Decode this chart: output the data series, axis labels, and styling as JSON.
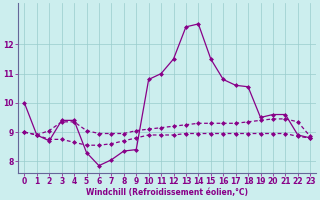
{
  "title": "",
  "xlabel": "Windchill (Refroidissement éolien,°C)",
  "background_color": "#cceeee",
  "grid_color": "#99cccc",
  "line_color": "#880088",
  "x": [
    0,
    1,
    2,
    3,
    4,
    5,
    6,
    7,
    8,
    9,
    10,
    11,
    12,
    13,
    14,
    15,
    16,
    17,
    18,
    19,
    20,
    21,
    22,
    23
  ],
  "line1": [
    10.0,
    8.9,
    8.7,
    9.4,
    9.4,
    8.3,
    7.85,
    8.05,
    8.35,
    8.4,
    10.8,
    11.0,
    11.5,
    12.6,
    12.7,
    11.5,
    10.8,
    10.6,
    10.55,
    9.5,
    9.6,
    9.6,
    8.9,
    8.8
  ],
  "line2": [
    9.0,
    8.9,
    9.05,
    9.35,
    9.35,
    9.05,
    8.95,
    8.95,
    8.95,
    9.05,
    9.1,
    9.15,
    9.2,
    9.25,
    9.3,
    9.3,
    9.3,
    9.3,
    9.35,
    9.4,
    9.45,
    9.45,
    9.35,
    8.85
  ],
  "line3": [
    9.0,
    8.9,
    8.75,
    8.75,
    8.65,
    8.55,
    8.55,
    8.6,
    8.7,
    8.8,
    8.9,
    8.9,
    8.9,
    8.95,
    8.95,
    8.95,
    8.95,
    8.95,
    8.95,
    8.95,
    8.95,
    8.95,
    8.85,
    8.8
  ],
  "ylim": [
    7.6,
    13.4
  ],
  "xlim": [
    -0.5,
    23.5
  ],
  "yticks": [
    8,
    9,
    10,
    11,
    12
  ],
  "xticks": [
    0,
    1,
    2,
    3,
    4,
    5,
    6,
    7,
    8,
    9,
    10,
    11,
    12,
    13,
    14,
    15,
    16,
    17,
    18,
    19,
    20,
    21,
    22,
    23
  ],
  "spine_color": "#666699",
  "tick_color": "#880088",
  "label_fontsize": 5.5,
  "tick_fontsize": 5.5
}
